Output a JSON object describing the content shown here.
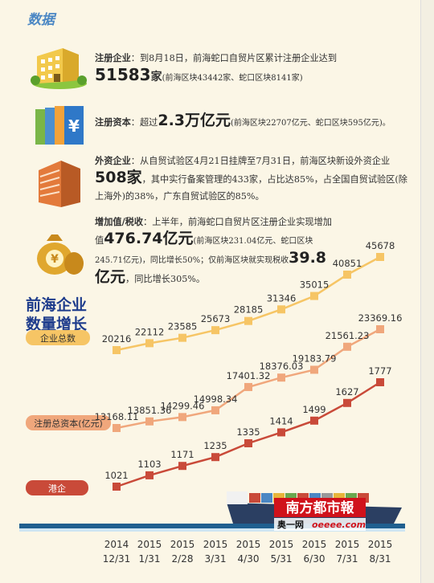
{
  "header": "数据",
  "items": {
    "registered": {
      "label": "注册企业",
      "text1": "：到8月18日，前海蛇口自贸片区累计注册企业达到",
      "number": "51583",
      "unit": "家",
      "detail": "(前海区块43442家、蛇口区块8141家)"
    },
    "capital": {
      "label": "注册资本",
      "text1": "：超过",
      "number": "2.3万亿元",
      "detail": "(前海区块22707亿元、蛇口区块595亿元)。"
    },
    "foreign": {
      "label": "外资企业",
      "text1": "：从自贸试验区4月21日挂牌至7月31日，前海区块新设外资企业",
      "number": "508家",
      "text2": "，其中实行备案管理的433家，占比达85%，占全国自贸试验区(除上海外)的38%，广东自贸试验区的85%。"
    },
    "tax": {
      "label": "增加值/税收",
      "text1": "：上半年，前海蛇口自贸片区注册企业实现增加值",
      "number1": "476.74亿元",
      "text2": "(前海区块231.04亿元、蛇口区块245.71亿元)，同比增长50%；仅前海区块就实现税收",
      "number2": "39.8亿元",
      "text3": "，同比增长305%。"
    }
  },
  "watermark": {
    "brand": "南方都市報",
    "site": "奥一网",
    "domain": "oeeee.com"
  },
  "colors": {
    "series1": "#f6c565",
    "series2": "#f0a77c",
    "series3": "#c94a39",
    "title": "#1e3c8c"
  },
  "chart_data": {
    "type": "line",
    "title": "前海企业数量增长",
    "categories": [
      [
        "2014",
        "12/31"
      ],
      [
        "2015",
        "1/31"
      ],
      [
        "2015",
        "2/28"
      ],
      [
        "2015",
        "3/31"
      ],
      [
        "2015",
        "4/30"
      ],
      [
        "2015",
        "5/31"
      ],
      [
        "2015",
        "6/30"
      ],
      [
        "2015",
        "7/31"
      ],
      [
        "2015",
        "8/31"
      ]
    ],
    "series": [
      {
        "name": "企业总数",
        "values": [
          20216,
          22112,
          23585,
          25673,
          28185,
          31346,
          35015,
          40851,
          45678
        ],
        "labels": [
          "20216",
          "22112",
          "23585",
          "25673",
          "28185",
          "31346",
          "35015",
          "40851",
          "45678"
        ]
      },
      {
        "name": "注册总资本(亿元)",
        "values": [
          13168.11,
          13851.36,
          14299.46,
          14998.34,
          17401.32,
          18376.03,
          19183.79,
          21561.23,
          23369.16
        ],
        "labels": [
          "13168.11",
          "13851.36",
          "14299.46",
          "14998.34",
          "17401.32",
          "18376.03",
          "19183.79",
          "21561.23",
          "23369.16"
        ]
      },
      {
        "name": "港企",
        "values": [
          1021,
          1103,
          1171,
          1235,
          1335,
          1414,
          1499,
          1627,
          1777
        ],
        "labels": [
          "1021",
          "1103",
          "1171",
          "1235",
          "1335",
          "1414",
          "1499",
          "1627",
          "1777"
        ]
      }
    ]
  }
}
